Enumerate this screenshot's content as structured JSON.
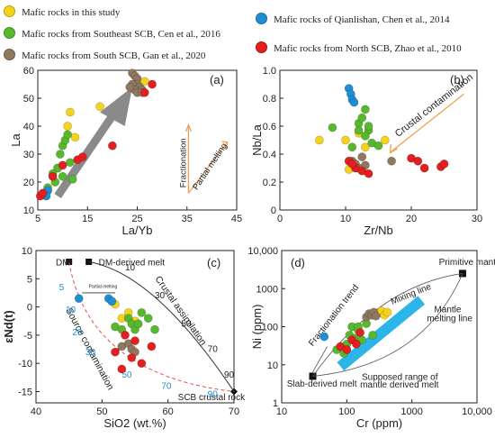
{
  "legend": [
    {
      "label": "Mafic rocks in this study",
      "color": "#f5d21c"
    },
    {
      "label": "Mafic rocks from Southeast SCB, Cen et al., 2016",
      "color": "#58b82d"
    },
    {
      "label": "Mafic rocks from South SCB, Gan et al., 2020",
      "color": "#8f7760"
    },
    {
      "label": "Mafic rocks of Qianlishan, Chen et al., 2014",
      "color": "#1e8fd3"
    },
    {
      "label": "Mafic rocks from North SCB, Zhao et al., 2010",
      "color": "#e31f1f"
    }
  ],
  "chart_data": [
    {
      "type": "scatter",
      "panel": "(a)",
      "xlabel": "La/Yb",
      "ylabel": "La",
      "xlim": [
        5,
        45
      ],
      "ylim": [
        10,
        60
      ],
      "xticks": [
        "5",
        "15",
        "25",
        "35",
        "45"
      ],
      "yticks": [
        "10",
        "20",
        "30",
        "40",
        "50",
        "60"
      ],
      "annotations": [
        "Fractionation",
        "Partial melting"
      ],
      "series": [
        {
          "name": "Mafic rocks in this study",
          "x": [
            11,
            11.5,
            12.5,
            17.5,
            7,
            24.5,
            25.5,
            26.5
          ],
          "y": [
            40,
            45,
            36,
            47,
            17,
            55,
            53,
            56
          ]
        },
        {
          "name": "Mafic rocks from Southeast SCB, Cen et al., 2016",
          "x": [
            9,
            9.5,
            10,
            10.5,
            11,
            10,
            8.5,
            9,
            11.5,
            12,
            8,
            7
          ],
          "y": [
            25,
            30,
            33,
            35,
            37,
            22,
            20,
            25,
            27,
            21,
            23,
            18
          ]
        },
        {
          "name": "Mafic rocks from South SCB, Gan et al., 2020",
          "x": [
            24,
            24.5,
            25,
            25,
            24,
            25.5,
            24.5,
            26,
            23.5,
            25,
            26
          ],
          "y": [
            59,
            58,
            57,
            55,
            55,
            54,
            53,
            53,
            54,
            52,
            52
          ]
        },
        {
          "name": "Mafic rocks of Qianlishan, Chen et al., 2014",
          "x": [
            6.5,
            6.8,
            7,
            6.7
          ],
          "y": [
            16,
            16.5,
            17,
            15
          ]
        },
        {
          "name": "Mafic rocks from North SCB, Zhao et al., 2010",
          "x": [
            5.5,
            6,
            8,
            10,
            13,
            14,
            20,
            28,
            26.5
          ],
          "y": [
            15,
            16,
            22,
            26,
            28,
            29,
            33,
            55,
            52
          ]
        }
      ]
    },
    {
      "type": "scatter",
      "panel": "(b)",
      "xlabel": "Zr/Nb",
      "ylabel": "Nb/La",
      "xlim": [
        0,
        30
      ],
      "ylim": [
        0,
        1.0
      ],
      "xticks": [
        "0",
        "10",
        "20",
        "30"
      ],
      "yticks": [
        "0",
        "0.2",
        "0.4",
        "0.6",
        "0.8",
        "1.0"
      ],
      "annotations": [
        "Crustal contamination"
      ],
      "series": [
        {
          "name": "Mafic rocks in this study",
          "x": [
            6,
            10,
            12,
            13,
            16,
            10.5
          ],
          "y": [
            0.5,
            0.5,
            0.55,
            0.45,
            0.5,
            0.29
          ]
        },
        {
          "name": "Mafic rocks from Southeast SCB, Cen et al., 2016",
          "x": [
            8,
            12,
            12.5,
            13,
            13.5,
            14,
            15,
            13,
            11,
            13.5,
            12
          ],
          "y": [
            0.59,
            0.62,
            0.66,
            0.72,
            0.57,
            0.48,
            0.46,
            0.53,
            0.45,
            0.6,
            0.57
          ]
        },
        {
          "name": "Mafic rocks from South SCB, Gan et al., 2020",
          "x": [
            11,
            11.5,
            12,
            12.5,
            13,
            17
          ],
          "y": [
            0.35,
            0.33,
            0.3,
            0.38,
            0.32,
            0.35
          ]
        },
        {
          "name": "Mafic rocks of Qianlishan, Chen et al., 2014",
          "x": [
            10.5,
            10.8,
            11,
            11.3
          ],
          "y": [
            0.87,
            0.83,
            0.79,
            0.77
          ]
        },
        {
          "name": "Mafic rocks from North SCB, Zhao et al., 2010",
          "x": [
            10.5,
            11.5,
            12.5,
            13.5,
            20,
            21,
            22,
            24.5,
            25,
            11
          ],
          "y": [
            0.35,
            0.3,
            0.28,
            0.26,
            0.37,
            0.35,
            0.3,
            0.31,
            0.33,
            0.33
          ]
        }
      ]
    },
    {
      "type": "scatter",
      "panel": "(c)",
      "xlabel": "SiO2 (wt.%)",
      "ylabel": "εNd(t)",
      "xlim": [
        40,
        70
      ],
      "ylim": [
        -17,
        10
      ],
      "xticks": [
        "40",
        "50",
        "60",
        "70"
      ],
      "yticks": [
        "10",
        "5",
        "0",
        "-5",
        "-10",
        "-15"
      ],
      "annotations": [
        "DM",
        "DM-derived melt",
        "Partial melting",
        "Crustal assimilation",
        "Source contamination",
        "SCB crustal rock",
        "10",
        "30",
        "50",
        "70",
        "90",
        "5",
        "10",
        "20",
        "30",
        "50",
        "70",
        "90"
      ],
      "series": [
        {
          "name": "Mafic rocks in this study",
          "x": [
            51.5,
            52,
            53,
            54,
            55
          ],
          "y": [
            1,
            0.5,
            -2,
            -1,
            -2.5
          ]
        },
        {
          "name": "Mafic rocks from Southeast SCB, Cen et al., 2016",
          "x": [
            52,
            53,
            54,
            54.5,
            55,
            55.5,
            56,
            57,
            58
          ],
          "y": [
            -3.5,
            -4,
            -2,
            -3,
            -4,
            -3,
            -1,
            -2,
            -4
          ]
        },
        {
          "name": "Mafic rocks from South SCB, Gan et al., 2020",
          "x": [
            53,
            54,
            54.5,
            55
          ],
          "y": [
            -7,
            -6.5,
            -7.5,
            -8
          ]
        },
        {
          "name": "Mafic rocks of Qianlishan, Chen et al., 2014",
          "x": [
            46.5,
            51,
            51.5
          ],
          "y": [
            1.5,
            1.5,
            1
          ]
        },
        {
          "name": "Mafic rocks from North SCB, Zhao et al., 2010",
          "x": [
            52,
            53,
            54.5,
            55,
            56,
            57.5,
            53.5
          ],
          "y": [
            -8,
            -11,
            -9,
            -6,
            -10,
            -7,
            -5
          ]
        }
      ]
    },
    {
      "type": "scatter",
      "panel": "(d)",
      "xlabel": "Cr (ppm)",
      "ylabel": "Ni (ppm)",
      "xscale": "log",
      "yscale": "log",
      "xlim": [
        10,
        10000
      ],
      "ylim": [
        1,
        10000
      ],
      "xticks": [
        "10",
        "100",
        "1000",
        "10,000"
      ],
      "yticks": [
        "1",
        "10",
        "100",
        "1000",
        "10,000"
      ],
      "annotations": [
        "Primitive mantle",
        "Mixing line",
        "Mantle melting line",
        "Fractionation trend",
        "Slab-derived melt",
        "Supposed range of mantle derived melt"
      ],
      "series": [
        {
          "name": "Mafic rocks in this study",
          "x": [
            300,
            340,
            380,
            420
          ],
          "y": [
            220,
            260,
            200,
            240
          ]
        },
        {
          "name": "Mafic rocks from Southeast SCB, Cen et al., 2016",
          "x": [
            70,
            80,
            90,
            100,
            110,
            120,
            130,
            150,
            170,
            200,
            250,
            150
          ],
          "y": [
            25,
            30,
            20,
            35,
            60,
            100,
            50,
            80,
            45,
            120,
            60,
            100
          ]
        },
        {
          "name": "Mafic rocks from South SCB, Gan et al., 2020",
          "x": [
            200,
            220,
            240,
            260,
            280
          ],
          "y": [
            180,
            220,
            200,
            240,
            190
          ]
        },
        {
          "name": "Mafic rocks of Qianlishan, Chen et al., 2014",
          "x": [
            45
          ],
          "y": [
            55
          ]
        },
        {
          "name": "Mafic rocks from North SCB, Zhao et al., 2010",
          "x": [
            80,
            100,
            120,
            140,
            160
          ],
          "y": [
            30,
            25,
            45,
            35,
            70
          ]
        }
      ]
    }
  ]
}
